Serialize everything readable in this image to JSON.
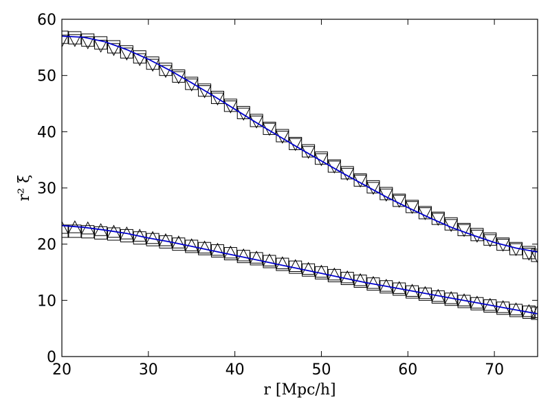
{
  "chart_data": {
    "type": "scatter",
    "title": "",
    "xlabel": "r  [Mpc/h]",
    "ylabel": "r² ξ",
    "xlim": [
      20,
      75
    ],
    "ylim": [
      0,
      60
    ],
    "xticks": [
      20,
      30,
      40,
      50,
      60,
      70
    ],
    "yticks": [
      0,
      10,
      20,
      30,
      40,
      50,
      60
    ],
    "grid": false,
    "legend": "none",
    "colors": {
      "model_line": "#0000cc",
      "markers": "#000000"
    },
    "x": [
      20,
      21.5,
      23,
      24.5,
      26,
      27.5,
      29,
      30.5,
      32,
      33.5,
      35,
      36.5,
      38,
      39.5,
      41,
      42.5,
      44,
      45.5,
      47,
      48.5,
      50,
      51.5,
      53,
      54.5,
      56,
      57.5,
      59,
      60.5,
      62,
      63.5,
      65,
      66.5,
      68,
      69.5,
      71,
      72.5,
      74,
      75
    ],
    "series": [
      {
        "marker": "square",
        "values": [
          56.8,
          56.7,
          56.3,
          55.8,
          55.1,
          54.2,
          53.3,
          52.2,
          51.1,
          49.9,
          48.6,
          47.4,
          46.1,
          44.7,
          43.4,
          42.0,
          40.6,
          39.3,
          37.9,
          36.6,
          35.3,
          33.9,
          32.7,
          31.4,
          30.2,
          29.0,
          27.8,
          26.7,
          25.6,
          24.6,
          23.6,
          22.6,
          21.7,
          20.9,
          20.0,
          19.2,
          18.5,
          18.0
        ]
      },
      {
        "marker": "triangle-down",
        "values": [
          56.3,
          56.4,
          56.0,
          55.4,
          54.8,
          54.0,
          53.0,
          52.0,
          50.9,
          49.8,
          48.5,
          47.3,
          46.0,
          44.6,
          43.3,
          41.9,
          40.6,
          39.2,
          37.9,
          36.5,
          35.2,
          33.9,
          32.6,
          31.4,
          30.1,
          28.9,
          27.8,
          26.7,
          25.6,
          24.6,
          23.5,
          22.6,
          21.6,
          20.8,
          20.0,
          19.2,
          18.4,
          17.9
        ]
      },
      {
        "marker": "square",
        "values": [
          22.3,
          22.3,
          22.2,
          22.0,
          21.8,
          21.5,
          21.1,
          20.8,
          20.4,
          20.0,
          19.6,
          19.2,
          18.8,
          18.3,
          17.8,
          17.4,
          16.9,
          16.4,
          15.9,
          15.4,
          14.9,
          14.4,
          13.9,
          13.4,
          12.9,
          12.4,
          12.0,
          11.5,
          11.1,
          10.6,
          10.2,
          9.8,
          9.4,
          9.0,
          8.6,
          8.2,
          7.9,
          7.7
        ]
      },
      {
        "marker": "triangle-up",
        "values": [
          22.8,
          22.9,
          22.7,
          22.4,
          22.1,
          21.8,
          21.4,
          21.0,
          20.6,
          20.2,
          19.7,
          19.3,
          18.9,
          18.4,
          17.9,
          17.5,
          17.0,
          16.5,
          16.0,
          15.5,
          15.0,
          14.5,
          14.0,
          13.5,
          13.0,
          12.5,
          12.1,
          11.6,
          11.2,
          10.7,
          10.3,
          9.9,
          9.5,
          9.1,
          8.7,
          8.3,
          8.0,
          7.8
        ]
      }
    ],
    "model_curves": [
      {
        "x": [
          20,
          22.5,
          25,
          27.5,
          30,
          32.5,
          35,
          37.5,
          40,
          42.5,
          45,
          47.5,
          50,
          52.5,
          55,
          57.5,
          60,
          62.5,
          65,
          67.5,
          70,
          72.5,
          75
        ],
        "values": [
          57.0,
          56.8,
          56.0,
          54.6,
          52.9,
          50.9,
          48.7,
          46.4,
          44.0,
          41.6,
          39.3,
          37.0,
          34.8,
          32.6,
          30.5,
          28.4,
          26.5,
          24.7,
          23.0,
          21.6,
          20.3,
          19.3,
          18.6
        ]
      },
      {
        "x": [
          20,
          22.5,
          25,
          27.5,
          30,
          32.5,
          35,
          37.5,
          40,
          42.5,
          45,
          47.5,
          50,
          52.5,
          55,
          57.5,
          60,
          62.5,
          65,
          67.5,
          70,
          72.5,
          75
        ],
        "values": [
          23.3,
          23.0,
          22.5,
          21.9,
          21.1,
          20.4,
          19.6,
          18.8,
          18.0,
          17.2,
          16.4,
          15.6,
          14.8,
          14.0,
          13.2,
          12.5,
          11.8,
          11.1,
          10.4,
          9.7,
          9.0,
          8.3,
          7.6
        ]
      }
    ]
  }
}
